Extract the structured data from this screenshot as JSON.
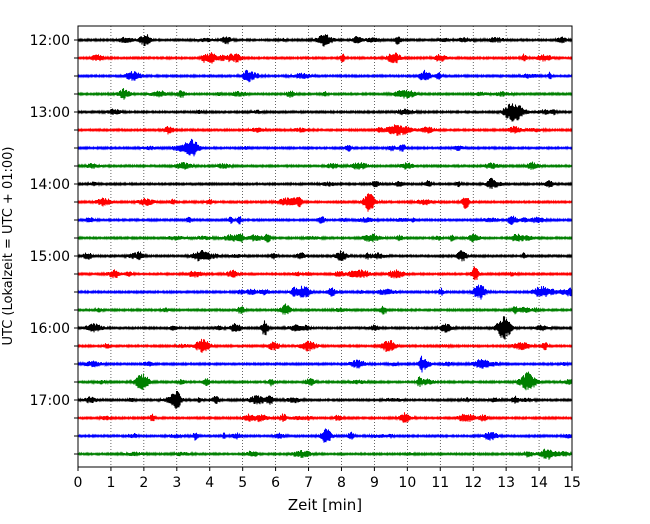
{
  "chart_data": {
    "type": "line",
    "title": "",
    "xlabel": "Zeit  [min]",
    "ylabel": "UTC (Lokalzeit = UTC + 01:00)",
    "xlim": [
      0,
      15
    ],
    "x_ticks": [
      "0",
      "1",
      "2",
      "3",
      "4",
      "5",
      "6",
      "7",
      "8",
      "9",
      "10",
      "11",
      "12",
      "13",
      "14",
      "15"
    ],
    "y_tick_labels": [
      "12:00",
      "13:00",
      "14:00",
      "15:00",
      "16:00",
      "17:00"
    ],
    "grid": "vertical dotted at each minute",
    "trace_colors": [
      "#000000",
      "#ff0000",
      "#0000ff",
      "#008000"
    ],
    "traces": [
      {
        "start": "12:00",
        "color": "#000000"
      },
      {
        "start": "12:15",
        "color": "#ff0000"
      },
      {
        "start": "12:30",
        "color": "#0000ff"
      },
      {
        "start": "12:45",
        "color": "#008000"
      },
      {
        "start": "13:00",
        "color": "#000000"
      },
      {
        "start": "13:15",
        "color": "#ff0000"
      },
      {
        "start": "13:30",
        "color": "#0000ff"
      },
      {
        "start": "13:45",
        "color": "#008000"
      },
      {
        "start": "14:00",
        "color": "#000000"
      },
      {
        "start": "14:15",
        "color": "#ff0000"
      },
      {
        "start": "14:30",
        "color": "#0000ff"
      },
      {
        "start": "14:45",
        "color": "#008000"
      },
      {
        "start": "15:00",
        "color": "#000000"
      },
      {
        "start": "15:15",
        "color": "#ff0000"
      },
      {
        "start": "15:30",
        "color": "#0000ff"
      },
      {
        "start": "15:45",
        "color": "#008000"
      },
      {
        "start": "16:00",
        "color": "#000000"
      },
      {
        "start": "16:15",
        "color": "#ff0000"
      },
      {
        "start": "16:30",
        "color": "#0000ff"
      },
      {
        "start": "16:45",
        "color": "#008000"
      },
      {
        "start": "17:00",
        "color": "#000000"
      },
      {
        "start": "17:15",
        "color": "#ff0000"
      },
      {
        "start": "17:30",
        "color": "#0000ff"
      },
      {
        "start": "17:45",
        "color": "#008000"
      }
    ]
  }
}
